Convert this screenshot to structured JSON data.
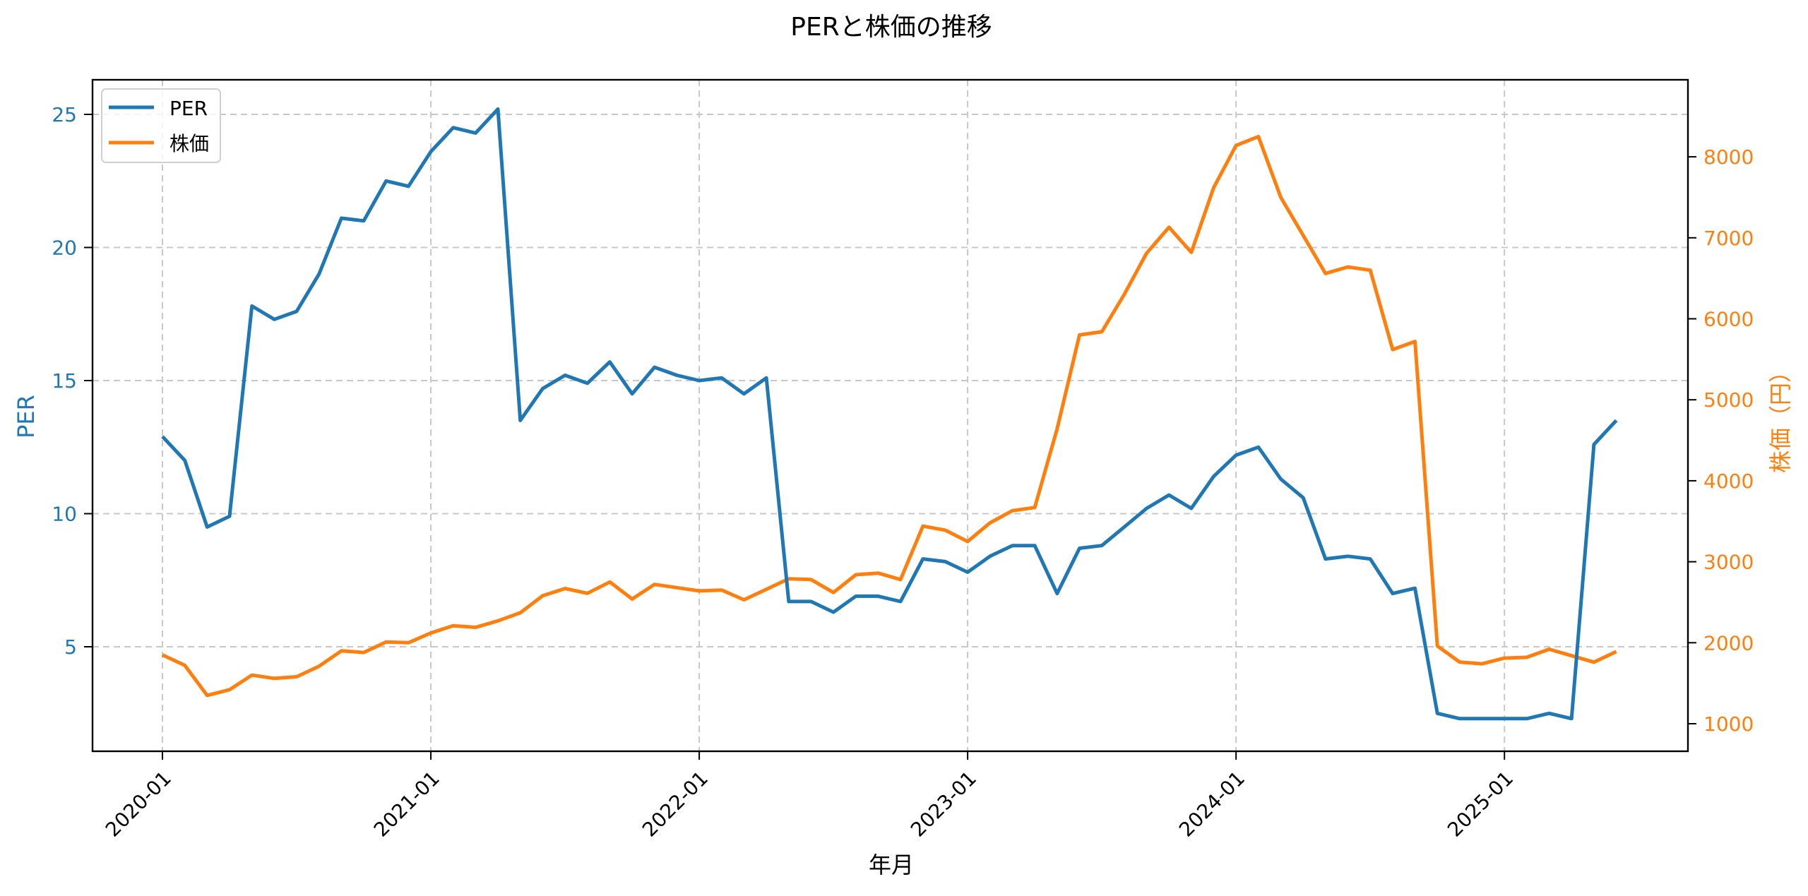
{
  "chart_data": {
    "type": "line",
    "title": "PERと株価の推移",
    "xlabel": "年月",
    "ylabel": "PER",
    "ylabel_right": "株価（円）",
    "x_tick_labels": [
      "2020-01",
      "2021-01",
      "2022-01",
      "2023-01",
      "2024-01",
      "2025-01"
    ],
    "y_ticks_left": [
      5,
      10,
      15,
      20,
      25
    ],
    "y_ticks_right": [
      1000,
      2000,
      3000,
      4000,
      5000,
      6000,
      7000,
      8000
    ],
    "ylim_left": [
      1.2,
      26.3
    ],
    "ylim_right": [
      650,
      8950
    ],
    "grid": true,
    "legend_position": "upper left",
    "x": [
      "2020-01",
      "2020-02",
      "2020-03",
      "2020-04",
      "2020-05",
      "2020-06",
      "2020-07",
      "2020-08",
      "2020-09",
      "2020-10",
      "2020-11",
      "2020-12",
      "2021-01",
      "2021-02",
      "2021-03",
      "2021-04",
      "2021-05",
      "2021-06",
      "2021-07",
      "2021-08",
      "2021-09",
      "2021-10",
      "2021-11",
      "2021-12",
      "2022-01",
      "2022-02",
      "2022-03",
      "2022-04",
      "2022-05",
      "2022-06",
      "2022-07",
      "2022-08",
      "2022-09",
      "2022-10",
      "2022-11",
      "2022-12",
      "2023-01",
      "2023-02",
      "2023-03",
      "2023-04",
      "2023-05",
      "2023-06",
      "2023-07",
      "2023-08",
      "2023-09",
      "2023-10",
      "2023-11",
      "2023-12",
      "2024-01",
      "2024-02",
      "2024-03",
      "2024-04",
      "2024-05",
      "2024-06",
      "2024-07",
      "2024-08",
      "2024-09",
      "2024-10",
      "2024-11",
      "2024-12",
      "2025-01",
      "2025-02",
      "2025-03",
      "2025-04",
      "2025-05",
      "2025-06"
    ],
    "series": [
      {
        "name": "PER",
        "axis": "left",
        "color": "#1f77b4",
        "values": [
          12.9,
          12.0,
          9.5,
          9.9,
          17.8,
          17.3,
          17.6,
          19.0,
          21.1,
          21.0,
          22.5,
          22.3,
          23.6,
          24.5,
          24.3,
          25.2,
          13.5,
          14.7,
          15.2,
          14.9,
          15.7,
          14.5,
          15.5,
          15.2,
          15.0,
          15.1,
          14.5,
          15.1,
          6.7,
          6.7,
          6.3,
          6.9,
          6.9,
          6.7,
          8.3,
          8.2,
          7.8,
          8.4,
          8.8,
          8.8,
          7.0,
          8.7,
          8.8,
          9.5,
          10.2,
          10.7,
          10.2,
          11.4,
          12.2,
          12.5,
          11.3,
          10.6,
          8.3,
          8.4,
          8.3,
          7.0,
          7.2,
          2.5,
          2.3,
          2.3,
          2.3,
          2.3,
          2.5,
          2.3,
          12.6,
          13.5
        ]
      },
      {
        "name": "株価",
        "axis": "right",
        "color": "#ff7f0e",
        "values": [
          1850,
          1720,
          1350,
          1420,
          1600,
          1560,
          1580,
          1710,
          1900,
          1880,
          2010,
          2000,
          2120,
          2210,
          2190,
          2270,
          2370,
          2580,
          2670,
          2610,
          2750,
          2540,
          2720,
          2680,
          2640,
          2650,
          2530,
          2660,
          2790,
          2780,
          2620,
          2840,
          2860,
          2780,
          3440,
          3390,
          3250,
          3480,
          3630,
          3670,
          4640,
          5800,
          5840,
          6300,
          6810,
          7130,
          6820,
          7620,
          8140,
          8250,
          7500,
          7030,
          6560,
          6640,
          6600,
          5620,
          5720,
          1960,
          1760,
          1740,
          1810,
          1820,
          1920,
          1840,
          1760,
          1890
        ]
      }
    ]
  },
  "legend": {
    "items": [
      {
        "label": "PER",
        "color": "#1f77b4"
      },
      {
        "label": "株価",
        "color": "#ff7f0e"
      }
    ]
  }
}
